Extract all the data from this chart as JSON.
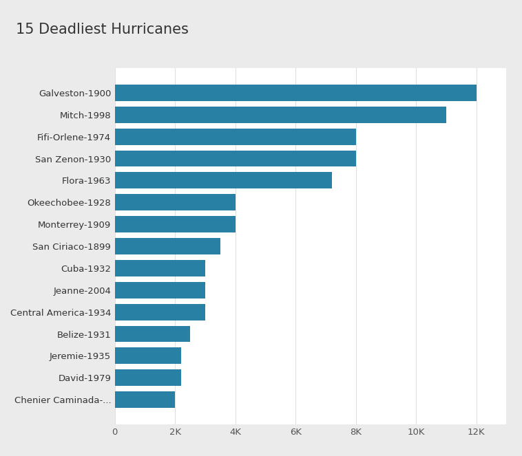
{
  "title": "15 Deadliest Hurricanes",
  "categories": [
    "Galveston-1900",
    "Mitch-1998",
    "Fifi-Orlene-1974",
    "San Zenon-1930",
    "Flora-1963",
    "Okeechobee-1928",
    "Monterrey-1909",
    "San Ciriaco-1899",
    "Cuba-1932",
    "Jeanne-2004",
    "Central America-1934",
    "Belize-1931",
    "Jeremie-1935",
    "David-1979",
    "Chenier Caminada-..."
  ],
  "values": [
    12000,
    11000,
    8000,
    8000,
    7200,
    4000,
    4000,
    3500,
    3000,
    3000,
    3000,
    2500,
    2200,
    2200,
    2000
  ],
  "bar_color": "#2980a5",
  "background_color": "#ebebeb",
  "plot_bg_color": "#ffffff",
  "title_fontsize": 15,
  "label_fontsize": 9.5,
  "tick_fontsize": 9.5,
  "xlim": [
    0,
    13000
  ],
  "xticks": [
    0,
    2000,
    4000,
    6000,
    8000,
    10000,
    12000
  ],
  "xtick_labels": [
    "0",
    "2K",
    "4K",
    "6K",
    "8K",
    "10K",
    "12K"
  ]
}
